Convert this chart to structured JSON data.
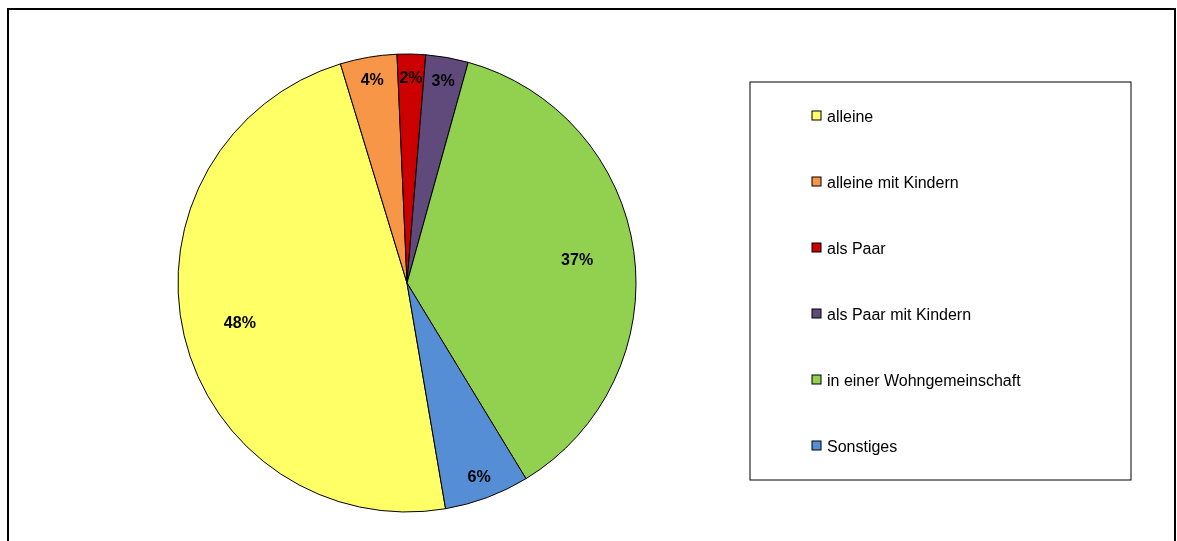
{
  "chart_data": {
    "type": "pie",
    "categories": [
      "alleine",
      "alleine mit Kindern",
      "als Paar",
      "als Paar mit Kindern",
      "in einer Wohngemeinschaft",
      "Sonstiges"
    ],
    "values": [
      48,
      4,
      2,
      3,
      37,
      6
    ],
    "colors": [
      "#ffff66",
      "#f79646",
      "#cc0000",
      "#604a7b",
      "#92d050",
      "#558ed5"
    ],
    "value_labels": [
      "48%",
      "4%",
      "2%",
      "3%",
      "37%",
      "6%"
    ],
    "legend": "right"
  }
}
